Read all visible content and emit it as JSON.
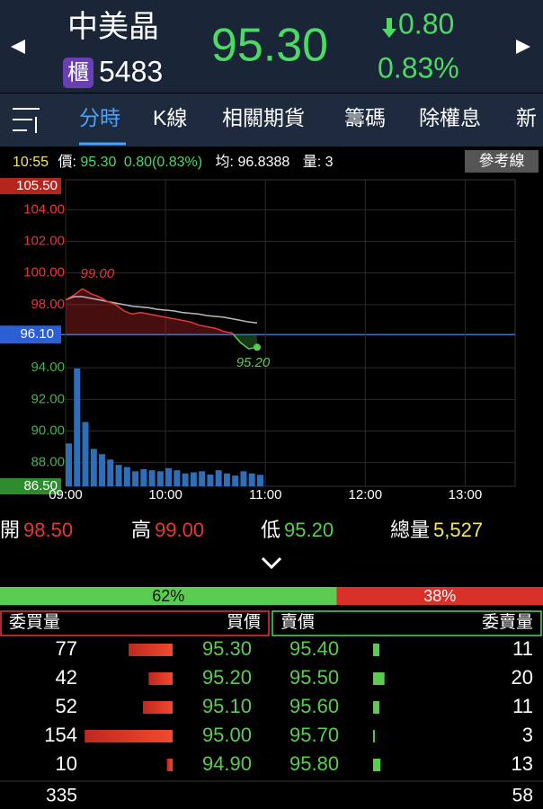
{
  "header": {
    "name": "中美晶",
    "board": "櫃",
    "code": "5483",
    "price": "95.30",
    "change": "0.80",
    "change_pct": "0.83%"
  },
  "tabs": [
    "分時",
    "K線",
    "相關期貨",
    "籌碼",
    "除權息",
    "新"
  ],
  "info": {
    "time": "10:55",
    "price_label": "價:",
    "price": "95.30",
    "change": "0.80(0.83%)",
    "avg_label": "均:",
    "avg": "96.8388",
    "vol_label": "量:",
    "vol": "3",
    "button": "參考線"
  },
  "chart_data": {
    "type": "line",
    "x": [
      "09:00",
      "09:05",
      "09:10",
      "09:15",
      "09:20",
      "09:25",
      "09:30",
      "09:35",
      "09:40",
      "09:45",
      "09:50",
      "09:55",
      "10:00",
      "10:05",
      "10:10",
      "10:15",
      "10:20",
      "10:25",
      "10:30",
      "10:35",
      "10:40",
      "10:45",
      "10:50",
      "10:55"
    ],
    "series": [
      {
        "color": "#e53935",
        "values": [
          98.3,
          98.6,
          99.0,
          98.7,
          98.5,
          98.2,
          98.0,
          97.6,
          97.4,
          97.5,
          97.4,
          97.3,
          97.2,
          97.1,
          97.0,
          96.9,
          96.7,
          96.6,
          96.5,
          96.3,
          96.2,
          95.6,
          95.2,
          95.3
        ]
      },
      {
        "color": "#bbbbbb",
        "values": [
          98.3,
          98.5,
          98.5,
          98.4,
          98.3,
          98.2,
          98.1,
          98.0,
          97.9,
          97.85,
          97.8,
          97.7,
          97.65,
          97.6,
          97.5,
          97.45,
          97.4,
          97.3,
          97.25,
          97.2,
          97.1,
          97.0,
          96.9,
          96.8388
        ]
      }
    ],
    "volumes": {
      "color": "#2e6fb8",
      "values": [
        400,
        1100,
        600,
        350,
        300,
        250,
        200,
        180,
        140,
        160,
        150,
        140,
        170,
        150,
        120,
        130,
        140,
        110,
        150,
        120,
        100,
        140,
        120,
        107
      ]
    },
    "vlim": [
      0,
      1200
    ],
    "xlim": [
      "09:00",
      "13:30"
    ],
    "xticks": [
      "09:00",
      "10:00",
      "11:00",
      "12:00",
      "13:00"
    ],
    "ylim": [
      86.5,
      105.5
    ],
    "yticks": [
      {
        "value": 86.5,
        "label": "86.50"
      },
      {
        "value": 88,
        "label": "88.00"
      },
      {
        "value": 90,
        "label": "90.00"
      },
      {
        "value": 92,
        "label": "92.00"
      },
      {
        "value": 94,
        "label": "94.00"
      },
      {
        "value": 98,
        "label": "98.00"
      },
      {
        "value": 100,
        "label": "100.00"
      },
      {
        "value": 102,
        "label": "102.00"
      },
      {
        "value": 104,
        "label": "104.00"
      },
      {
        "value": 105.5,
        "label": "105.50"
      }
    ],
    "reference": {
      "value": 96.1,
      "label": "96.10"
    },
    "annotations": [
      {
        "text": "99.00",
        "x": "09:10",
        "y": 99.0
      },
      {
        "text": "95.20",
        "x": "10:50",
        "y": 95.2
      }
    ],
    "grid": true
  },
  "summary": [
    {
      "label": "開",
      "value": "98.50"
    },
    {
      "label": "高",
      "value": "99.00"
    },
    {
      "label": "低",
      "value": "95.20"
    },
    {
      "label": "總量",
      "value": "5,527"
    }
  ],
  "ratio": {
    "values": [
      62,
      38
    ],
    "value_labels": [
      "62%",
      "38%"
    ]
  },
  "order_book": {
    "headers": [
      "委買量",
      "買價",
      "賣價",
      "委賣量"
    ],
    "bid_qty": [
      77,
      42,
      52,
      154,
      10
    ],
    "bid_price": [
      "95.30",
      "95.20",
      "95.10",
      "95.00",
      "94.90"
    ],
    "ask_price": [
      "95.40",
      "95.50",
      "95.60",
      "95.70",
      "95.80"
    ],
    "ask_qty": [
      11,
      20,
      11,
      3,
      13
    ],
    "totals": [
      335,
      58
    ]
  }
}
